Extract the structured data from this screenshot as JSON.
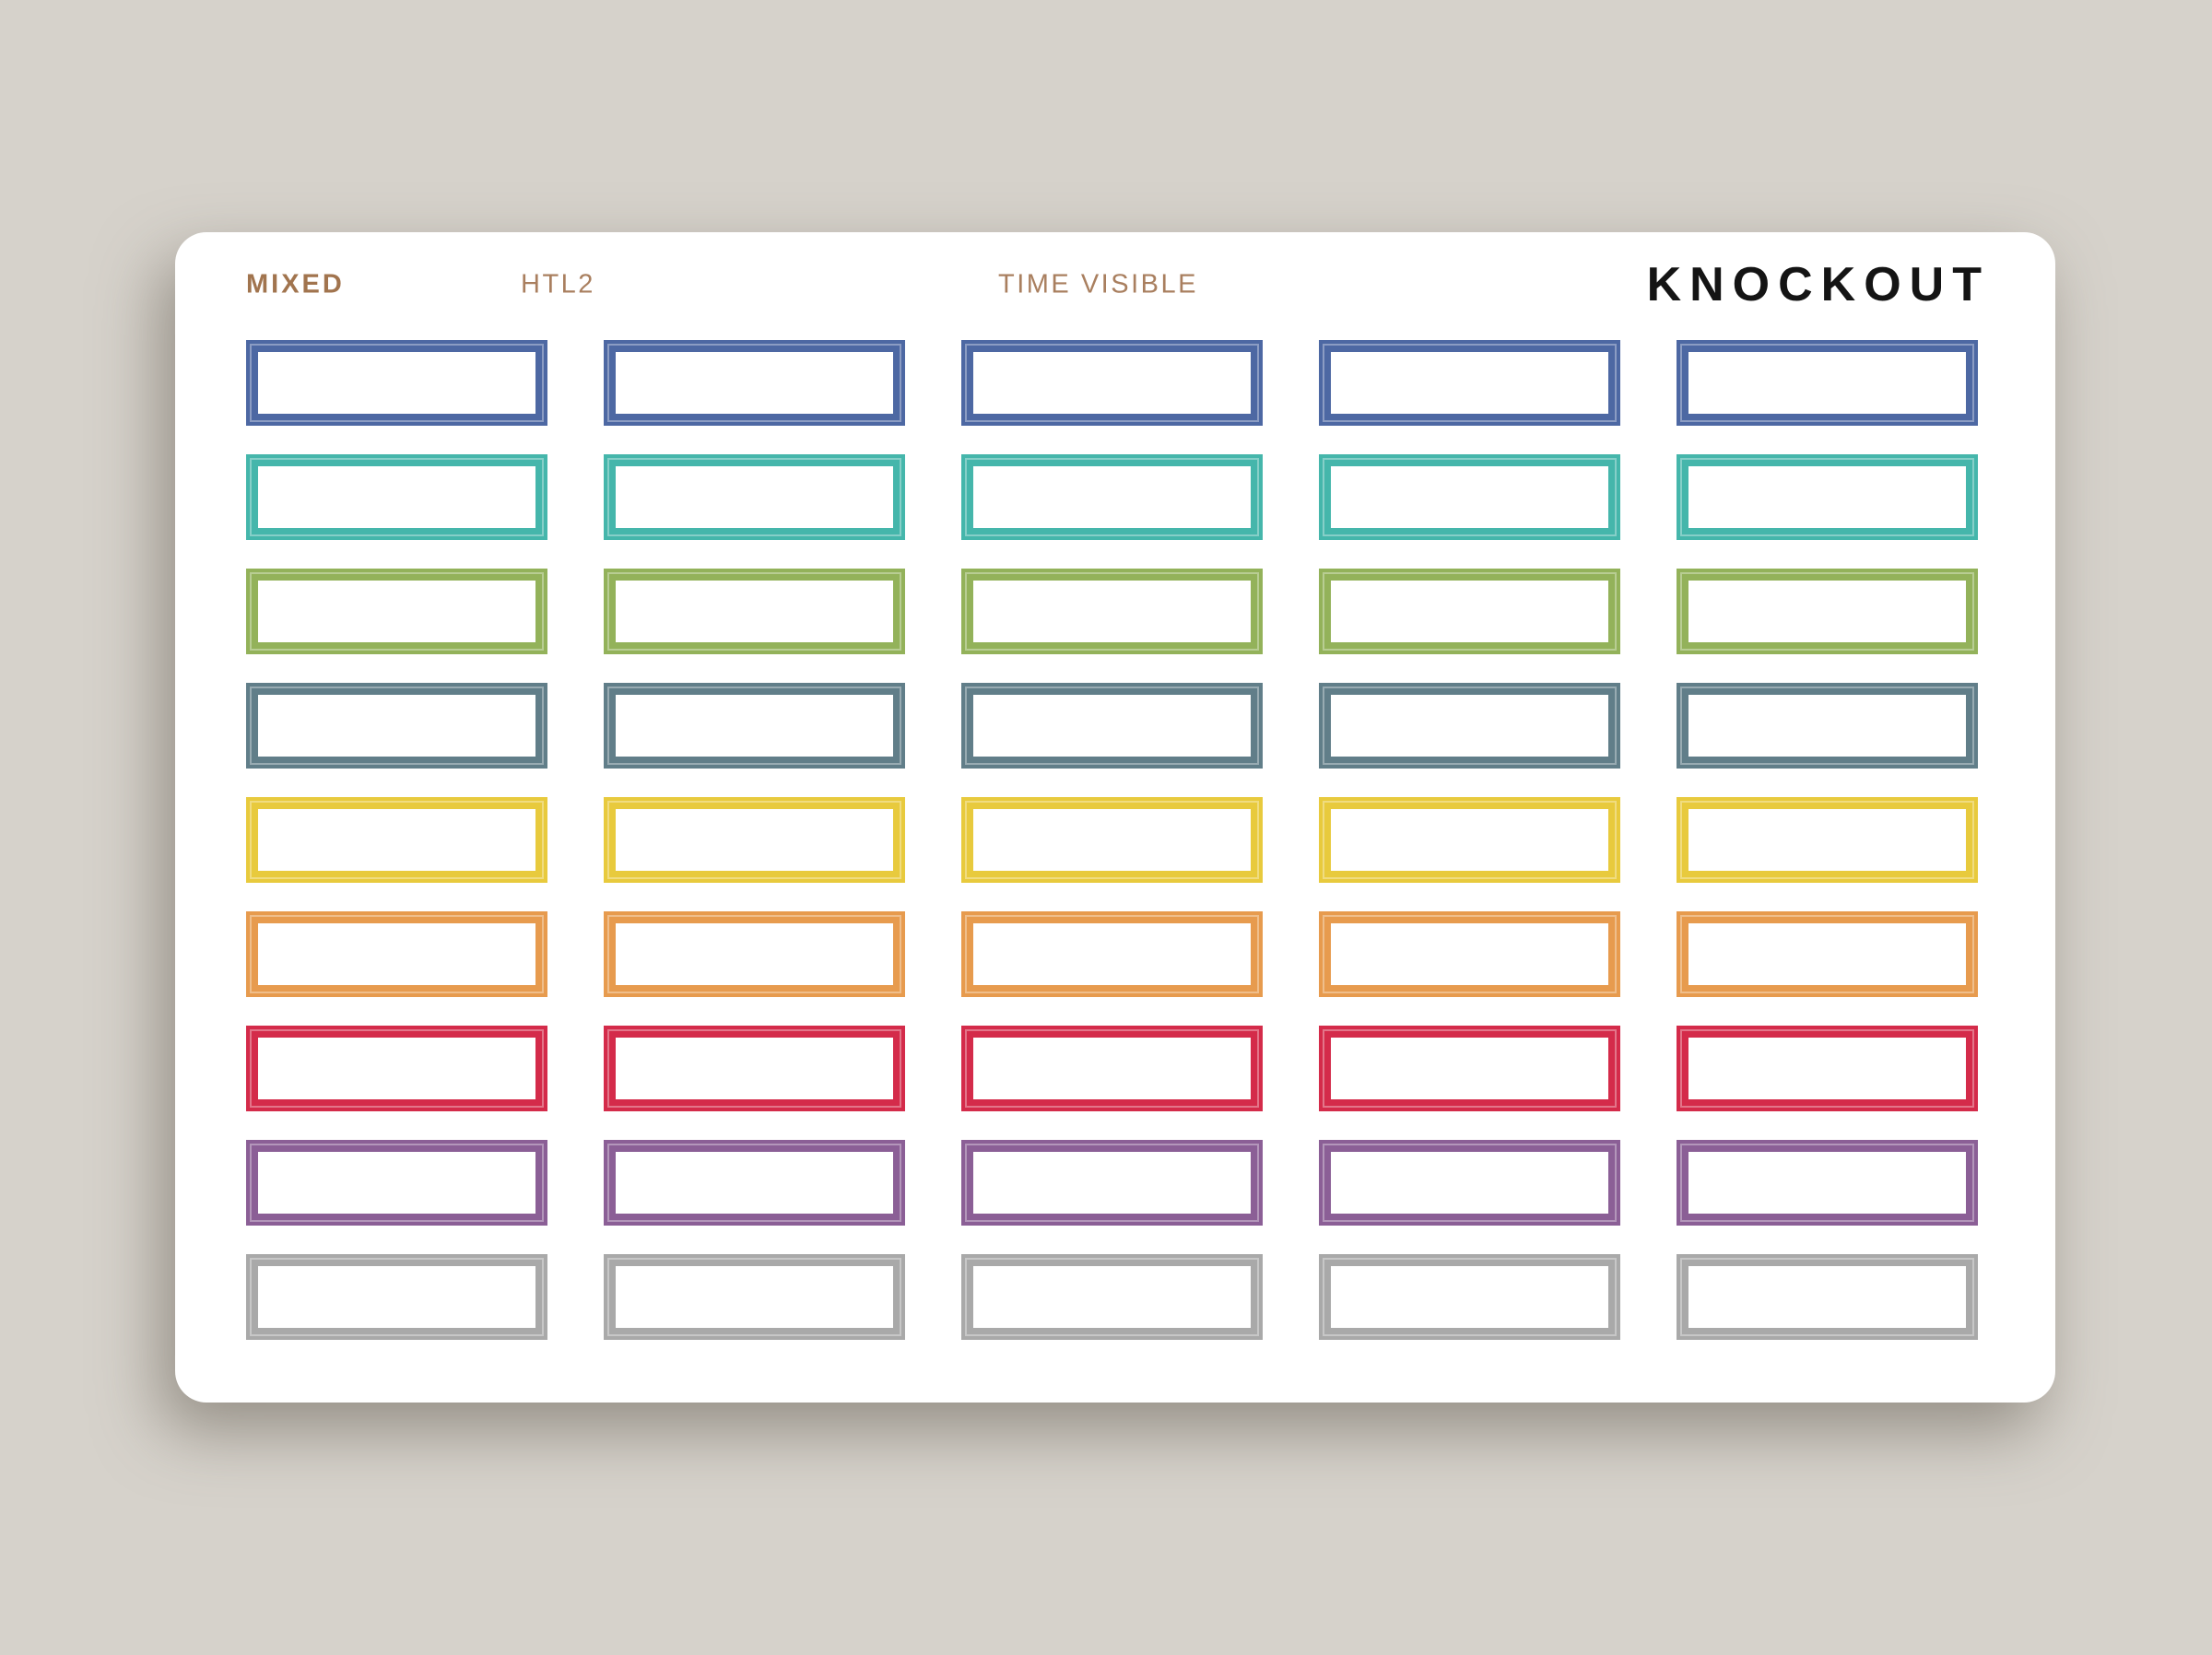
{
  "page": {
    "background_color": "#d6d2cb"
  },
  "card": {
    "background_color": "#ffffff"
  },
  "header": {
    "collection_label": "MIXED",
    "collection_color": "#a1744e",
    "sku_label": "HTL2",
    "style_label": "TIME VISIBLE",
    "secondary_label_color": "#a97f5f",
    "brand_label": "KNOCKOUT",
    "brand_color": "#141414"
  },
  "sticker_grid": {
    "columns": 5,
    "sticker_fill_color": "#ffffff",
    "rows": [
      {
        "name": "blue",
        "hex": "#4d68a3"
      },
      {
        "name": "teal",
        "hex": "#45b6ab"
      },
      {
        "name": "green",
        "hex": "#93b25a"
      },
      {
        "name": "slate",
        "hex": "#617e89"
      },
      {
        "name": "yellow",
        "hex": "#e8ca3d"
      },
      {
        "name": "orange",
        "hex": "#e79b4e"
      },
      {
        "name": "red",
        "hex": "#d42b4a"
      },
      {
        "name": "purple",
        "hex": "#8b5f96"
      },
      {
        "name": "gray",
        "hex": "#a9a9a9"
      }
    ]
  }
}
